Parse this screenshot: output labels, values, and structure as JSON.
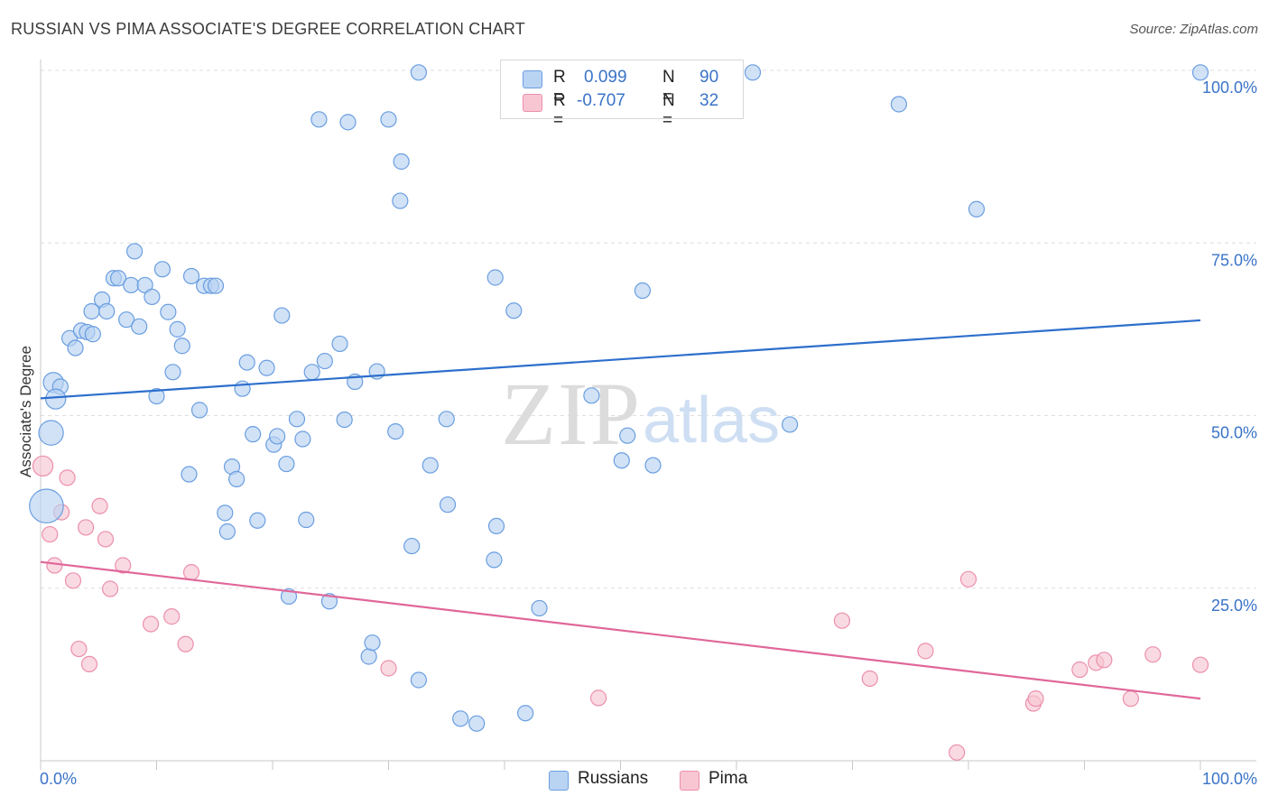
{
  "title": "RUSSIAN VS PIMA ASSOCIATE'S DEGREE CORRELATION CHART",
  "source": "Source: ZipAtlas.com",
  "watermark": "ZIPatlas",
  "colors": {
    "russians_fill": "#b9d3f3",
    "russians_stroke": "#6a9ee0",
    "russians_line": "#2d6fcc",
    "pima_fill": "#f8c6d3",
    "pima_stroke": "#ec8fac",
    "pima_line": "#e0679a",
    "tick_label": "#3a73c8",
    "grid": "#dedede"
  },
  "legend": {
    "rows": [
      {
        "r_label": "R =",
        "r_value": "0.099",
        "n_label": "N =",
        "n_value": "90"
      },
      {
        "r_label": "R =",
        "r_value": "-0.707",
        "n_label": "N =",
        "n_value": "32"
      }
    ]
  },
  "bottom_legend": [
    "Russians",
    "Pima"
  ],
  "chart_data": {
    "type": "scatter",
    "title": "RUSSIAN VS PIMA ASSOCIATE'S DEGREE CORRELATION CHART",
    "xlabel": "",
    "ylabel": "Associate's Degree",
    "xlim": [
      0,
      100
    ],
    "ylim": [
      0,
      100
    ],
    "x_tick_labels": [
      "0.0%",
      "100.0%"
    ],
    "y_ticks": [
      25,
      50,
      75,
      100
    ],
    "y_tick_labels": [
      "25.0%",
      "50.0%",
      "75.0%",
      "100.0%"
    ],
    "grid": true,
    "legend_placement": "top-center",
    "series": [
      {
        "name": "Russians",
        "r": 0.099,
        "n": 90,
        "trend": [
          [
            0,
            52.5
          ],
          [
            100,
            63.8
          ]
        ],
        "points": [
          [
            1.1,
            54.8,
            1.3
          ],
          [
            1.7,
            54.2,
            1
          ],
          [
            1.3,
            52.4,
            1.3
          ],
          [
            0.9,
            47.5,
            1.6
          ],
          [
            0.5,
            36.9,
            2.2
          ],
          [
            2.5,
            61.2,
            1
          ],
          [
            3.0,
            59.8,
            1
          ],
          [
            3.5,
            62.3,
            1
          ],
          [
            4.0,
            62.1,
            1
          ],
          [
            4.5,
            61.8,
            1
          ],
          [
            4.4,
            65.1,
            1
          ],
          [
            5.3,
            66.8,
            1
          ],
          [
            5.7,
            65.1,
            1
          ],
          [
            6.3,
            69.9,
            1
          ],
          [
            6.7,
            69.9,
            1
          ],
          [
            7.4,
            63.9,
            1
          ],
          [
            7.8,
            68.9,
            1
          ],
          [
            8.5,
            62.9,
            1
          ],
          [
            9.0,
            68.9,
            1
          ],
          [
            9.6,
            67.2,
            1
          ],
          [
            8.1,
            73.8,
            1
          ],
          [
            10.5,
            71.2,
            1
          ],
          [
            10.0,
            52.8,
            1
          ],
          [
            11.0,
            65.0,
            1
          ],
          [
            11.4,
            56.3,
            1
          ],
          [
            11.8,
            62.5,
            1
          ],
          [
            12.2,
            60.1,
            1
          ],
          [
            12.8,
            41.5,
            1
          ],
          [
            13.0,
            70.2,
            1
          ],
          [
            13.7,
            50.8,
            1
          ],
          [
            14.1,
            68.8,
            1
          ],
          [
            14.7,
            68.8,
            1
          ],
          [
            15.1,
            68.8,
            1
          ],
          [
            15.9,
            35.9,
            1
          ],
          [
            16.1,
            33.2,
            1
          ],
          [
            16.5,
            42.6,
            1
          ],
          [
            16.9,
            40.8,
            1
          ],
          [
            17.4,
            53.9,
            1
          ],
          [
            17.8,
            57.7,
            1
          ],
          [
            18.3,
            47.3,
            1
          ],
          [
            18.7,
            34.8,
            1
          ],
          [
            19.5,
            56.9,
            1
          ],
          [
            20.1,
            45.8,
            1
          ],
          [
            20.4,
            47.0,
            1
          ],
          [
            20.8,
            64.5,
            1
          ],
          [
            21.2,
            43.0,
            1
          ],
          [
            21.4,
            23.8,
            1
          ],
          [
            22.1,
            49.5,
            1
          ],
          [
            22.6,
            46.6,
            1
          ],
          [
            22.9,
            34.9,
            1
          ],
          [
            23.4,
            56.3,
            1
          ],
          [
            24.0,
            92.9,
            1
          ],
          [
            24.5,
            57.9,
            1
          ],
          [
            24.9,
            23.1,
            1
          ],
          [
            25.8,
            60.4,
            1
          ],
          [
            26.2,
            49.4,
            1
          ],
          [
            26.5,
            92.5,
            1
          ],
          [
            27.1,
            54.9,
            1
          ],
          [
            28.3,
            15.1,
            1
          ],
          [
            28.6,
            17.1,
            1
          ],
          [
            29.0,
            56.4,
            1
          ],
          [
            30.0,
            92.9,
            1
          ],
          [
            30.6,
            47.7,
            1
          ],
          [
            31.1,
            86.8,
            1
          ],
          [
            31.0,
            81.1,
            1
          ],
          [
            32.0,
            31.1,
            1
          ],
          [
            32.6,
            11.7,
            1
          ],
          [
            32.6,
            99.7,
            1
          ],
          [
            33.6,
            42.8,
            1
          ],
          [
            35.0,
            49.5,
            1
          ],
          [
            35.1,
            37.1,
            1
          ],
          [
            36.2,
            6.1,
            1
          ],
          [
            37.6,
            5.4,
            1
          ],
          [
            39.2,
            70.0,
            1
          ],
          [
            39.1,
            29.1,
            1
          ],
          [
            39.3,
            34.0,
            1
          ],
          [
            40.8,
            65.2,
            1
          ],
          [
            41.8,
            6.9,
            1
          ],
          [
            43.0,
            22.1,
            1
          ],
          [
            47.5,
            52.9,
            1
          ],
          [
            50.1,
            43.5,
            1
          ],
          [
            50.6,
            47.1,
            1
          ],
          [
            51.9,
            68.1,
            1
          ],
          [
            52.8,
            42.8,
            1
          ],
          [
            59.0,
            99.7,
            1
          ],
          [
            61.4,
            99.7,
            1
          ],
          [
            64.6,
            48.7,
            1
          ],
          [
            74.0,
            95.1,
            1
          ],
          [
            80.7,
            79.9,
            1
          ],
          [
            100.0,
            99.7,
            1
          ]
        ]
      },
      {
        "name": "Pima",
        "r": -0.707,
        "n": 32,
        "trend": [
          [
            0,
            28.8
          ],
          [
            100,
            9.0
          ]
        ],
        "points": [
          [
            0.2,
            42.7,
            1.3
          ],
          [
            0.8,
            32.8,
            1
          ],
          [
            1.2,
            28.3,
            1
          ],
          [
            1.8,
            36.0,
            1
          ],
          [
            2.3,
            41.0,
            1
          ],
          [
            2.8,
            26.1,
            1
          ],
          [
            3.3,
            16.2,
            1
          ],
          [
            3.9,
            33.8,
            1
          ],
          [
            4.2,
            14.0,
            1
          ],
          [
            5.1,
            36.9,
            1
          ],
          [
            5.6,
            32.1,
            1
          ],
          [
            6.0,
            24.9,
            1
          ],
          [
            7.1,
            28.3,
            1
          ],
          [
            9.5,
            19.8,
            1
          ],
          [
            11.3,
            20.9,
            1
          ],
          [
            12.5,
            16.9,
            1
          ],
          [
            13.0,
            27.3,
            1
          ],
          [
            30.0,
            13.4,
            1
          ],
          [
            48.1,
            9.1,
            1
          ],
          [
            69.1,
            20.3,
            1
          ],
          [
            71.5,
            11.9,
            1
          ],
          [
            76.3,
            15.9,
            1
          ],
          [
            79.0,
            1.2,
            1
          ],
          [
            80.0,
            26.3,
            1
          ],
          [
            85.6,
            8.3,
            1
          ],
          [
            85.8,
            9.0,
            1
          ],
          [
            89.6,
            13.2,
            1
          ],
          [
            91.0,
            14.2,
            1
          ],
          [
            91.7,
            14.6,
            1
          ],
          [
            94.0,
            9.0,
            1
          ],
          [
            95.9,
            15.4,
            1
          ],
          [
            100.0,
            13.9,
            1
          ]
        ]
      }
    ]
  }
}
